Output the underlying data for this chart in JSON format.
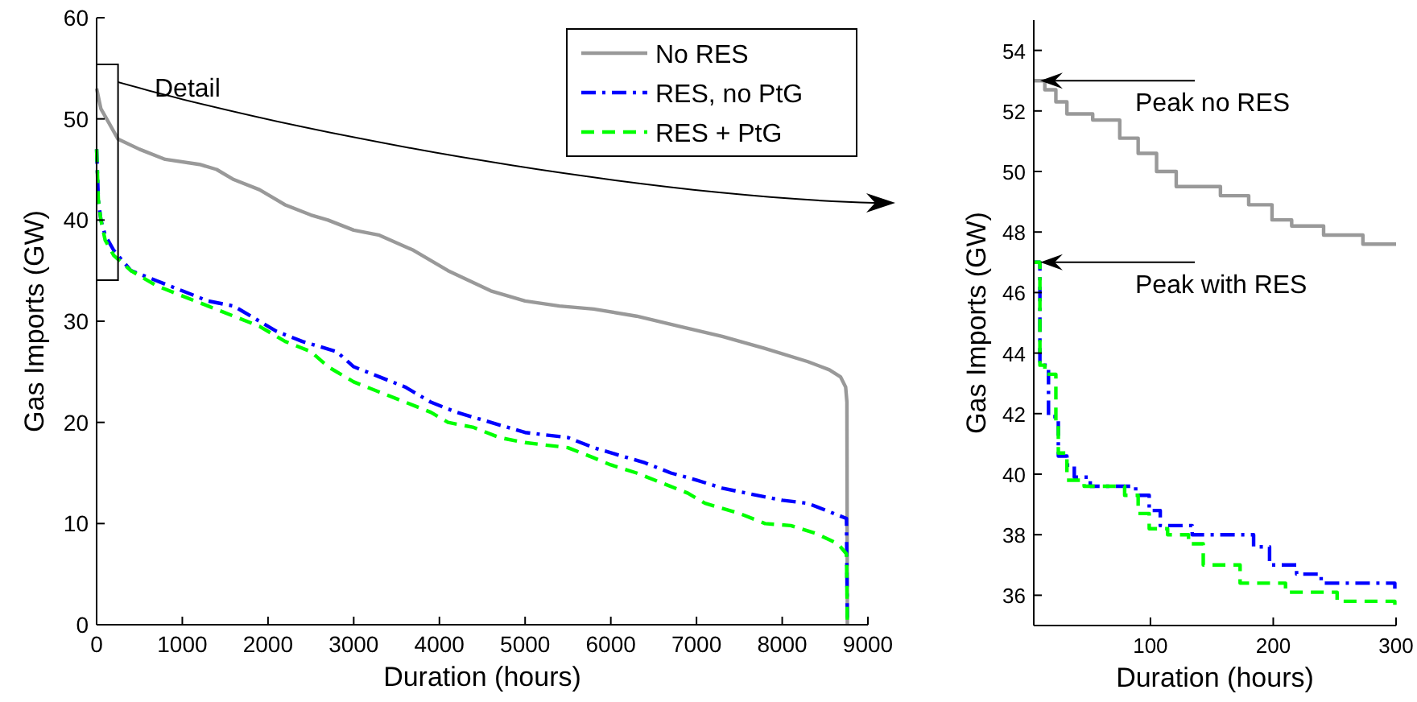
{
  "chart_data": [
    {
      "type": "line",
      "xlabel": "Duration (hours)",
      "ylabel": "Gas Imports (GW)",
      "xlim": [
        0,
        9000
      ],
      "ylim": [
        0,
        60
      ],
      "xticks": [
        0,
        1000,
        2000,
        3000,
        4000,
        5000,
        6000,
        7000,
        8000,
        9000
      ],
      "yticks": [
        0,
        10,
        20,
        30,
        40,
        50,
        60
      ],
      "legend": "top right",
      "grid": false,
      "annotations": [
        "Detail"
      ],
      "series": [
        {
          "name": "No RES",
          "color": "#999999",
          "line_style": "solid",
          "x": [
            0,
            50,
            150,
            250,
            500,
            800,
            1200,
            1400,
            1600,
            1900,
            2200,
            2500,
            2700,
            3000,
            3300,
            3700,
            4100,
            4600,
            5000,
            5400,
            5800,
            6300,
            6800,
            7300,
            7800,
            8300,
            8550,
            8680,
            8740,
            8755,
            8760
          ],
          "values": [
            53,
            51,
            49.5,
            48,
            47,
            46,
            45.5,
            45,
            44,
            43,
            41.5,
            40.5,
            40,
            39,
            38.5,
            37,
            35,
            33,
            32,
            31.5,
            31.2,
            30.5,
            29.5,
            28.5,
            27.3,
            26,
            25.2,
            24.5,
            23.5,
            22,
            0
          ]
        },
        {
          "name": "RES, no PtG",
          "color": "#0000ff",
          "line_style": "dashdot",
          "x": [
            0,
            20,
            50,
            100,
            200,
            400,
            700,
            1000,
            1300,
            1600,
            1900,
            2100,
            2400,
            2800,
            3000,
            3300,
            3600,
            3900,
            4200,
            4400,
            4800,
            5000,
            5500,
            5800,
            6000,
            6400,
            6700,
            7000,
            7300,
            7700,
            8000,
            8300,
            8600,
            8750,
            8760
          ],
          "values": [
            47,
            42,
            40,
            38.5,
            37,
            35,
            34,
            33,
            32,
            31.5,
            30,
            29,
            28,
            27,
            25.5,
            24.5,
            23.5,
            22,
            21,
            20.5,
            19.5,
            19,
            18.5,
            17.5,
            17,
            16,
            15,
            14.3,
            13.5,
            12.8,
            12.3,
            12,
            11,
            10.5,
            0
          ]
        },
        {
          "name": "RES + PtG",
          "color": "#00ff00",
          "line_style": "dashed",
          "x": [
            0,
            20,
            50,
            100,
            200,
            400,
            700,
            1000,
            1300,
            1600,
            1900,
            2200,
            2500,
            2700,
            3000,
            3300,
            3600,
            3900,
            4100,
            4400,
            4700,
            5000,
            5500,
            5800,
            6000,
            6300,
            6600,
            6900,
            7100,
            7500,
            7800,
            8100,
            8400,
            8650,
            8750,
            8760
          ],
          "values": [
            47,
            42,
            40,
            38,
            36.5,
            35,
            33.5,
            32.5,
            31.5,
            30.5,
            29.5,
            28,
            27,
            25.5,
            24,
            23,
            22,
            21,
            20,
            19.5,
            18.5,
            18,
            17.5,
            16.5,
            15.8,
            15,
            14,
            13,
            12,
            11,
            10,
            9.8,
            9,
            8,
            7,
            0
          ]
        }
      ]
    },
    {
      "type": "step",
      "xlabel": "Duration (hours)",
      "ylabel": "Gas Imports (GW)",
      "xlim": [
        5,
        300
      ],
      "ylim": [
        35,
        55
      ],
      "xticks": [
        100,
        200,
        300
      ],
      "yticks": [
        36,
        38,
        40,
        42,
        44,
        46,
        48,
        50,
        52,
        54
      ],
      "grid": false,
      "legend": false,
      "annotations": [
        {
          "text": "Peak no RES",
          "x": 5,
          "y": 53
        },
        {
          "text": "Peak with RES",
          "x": 5,
          "y": 47
        }
      ],
      "series": [
        {
          "color": "#999999",
          "line_style": "solid",
          "x": [
            5,
            14,
            23,
            32,
            53,
            75,
            90,
            105,
            121,
            157,
            180,
            199,
            215,
            241,
            273,
            300
          ],
          "values": [
            53,
            52.7,
            52.3,
            51.9,
            51.7,
            51.1,
            50.6,
            50,
            49.5,
            49.2,
            48.9,
            48.4,
            48.2,
            47.9,
            47.6,
            47.6
          ]
        },
        {
          "color": "#0000ff",
          "line_style": "dashdot",
          "x": [
            5,
            10,
            17,
            25,
            32,
            38,
            51,
            88,
            99,
            108,
            134,
            184,
            197,
            219,
            239,
            299,
            300
          ],
          "values": [
            47,
            43.6,
            41.9,
            40.6,
            40.3,
            39.9,
            39.6,
            39.3,
            38.8,
            38.3,
            38,
            37.6,
            37,
            36.7,
            36.4,
            36.1,
            36.1
          ]
        },
        {
          "color": "#00ff00",
          "line_style": "dashed",
          "x": [
            5,
            10,
            14,
            23,
            25,
            32,
            46,
            79,
            90,
            99,
            114,
            131,
            143,
            173,
            210,
            252,
            299,
            300
          ],
          "values": [
            47,
            43.6,
            43.3,
            41.7,
            40.7,
            39.8,
            39.6,
            39.3,
            38.7,
            38.2,
            38,
            37.7,
            37,
            36.4,
            36.1,
            35.8,
            35.6,
            35.6
          ]
        }
      ]
    }
  ]
}
